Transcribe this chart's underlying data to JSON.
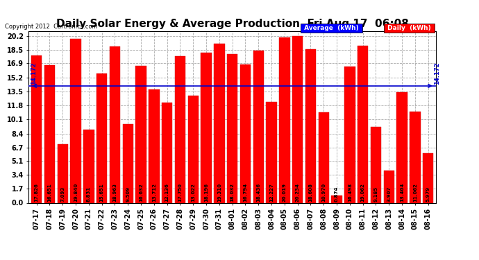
{
  "title": "Daily Solar Energy & Average Production  Fri Aug 17  06:08",
  "copyright": "Copyright 2012  Cartronics.com",
  "categories": [
    "07-17",
    "07-18",
    "07-19",
    "07-20",
    "07-21",
    "07-22",
    "07-23",
    "07-24",
    "07-25",
    "07-26",
    "07-27",
    "07-28",
    "07-29",
    "07-30",
    "07-31",
    "08-01",
    "08-02",
    "08-03",
    "08-04",
    "08-05",
    "08-06",
    "08-07",
    "08-08",
    "08-09",
    "08-10",
    "08-11",
    "08-12",
    "08-13",
    "08-14",
    "08-15",
    "08-16"
  ],
  "values": [
    17.826,
    16.651,
    7.093,
    19.84,
    8.831,
    15.651,
    18.963,
    9.509,
    16.632,
    13.712,
    12.136,
    17.75,
    13.022,
    18.196,
    19.31,
    18.032,
    16.794,
    18.436,
    12.227,
    20.019,
    20.234,
    18.608,
    10.97,
    0.874,
    16.498,
    19.062,
    9.185,
    3.907,
    13.404,
    11.062,
    5.979
  ],
  "average": 14.172,
  "bar_color": "#ff0000",
  "average_line_color": "#0000cc",
  "background_color": "#ffffff",
  "plot_bg_color": "#ffffff",
  "grid_color": "#aaaaaa",
  "yticks": [
    0.0,
    1.7,
    3.4,
    5.1,
    6.7,
    8.4,
    10.1,
    11.8,
    13.5,
    15.2,
    16.9,
    18.5,
    20.2
  ],
  "ylim": [
    0.0,
    20.8
  ],
  "title_fontsize": 11,
  "bar_label_fontsize": 5.0,
  "axis_fontsize": 7,
  "copyright_fontsize": 6,
  "legend_avg_color": "#0000ff",
  "legend_daily_color": "#ff0000",
  "legend_text_avg": "Average  (kWh)",
  "legend_text_daily": "Daily  (kWh)"
}
